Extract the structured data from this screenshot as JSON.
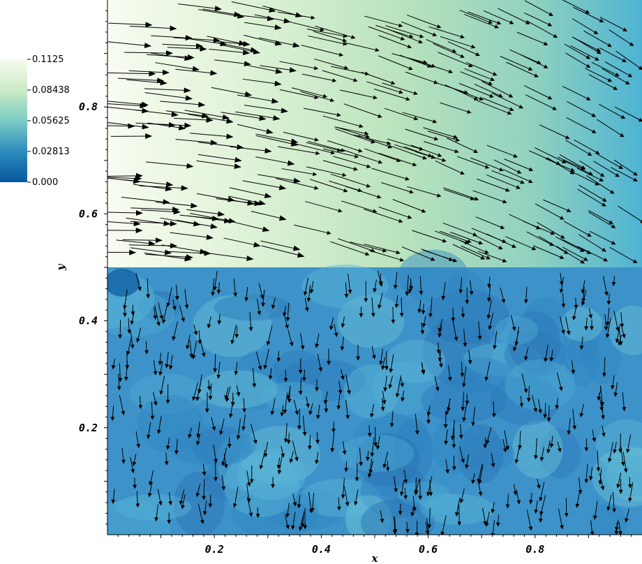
{
  "chart_data": {
    "type": "vector_field",
    "xlabel": "x",
    "ylabel": "y",
    "xlim": [
      0.0,
      1.0
    ],
    "ylim": [
      0.0,
      1.0
    ],
    "x_ticks": [
      "0.2",
      "0.4",
      "0.6",
      "0.8"
    ],
    "x_tick_values": [
      0.2,
      0.4,
      0.6,
      0.8
    ],
    "y_ticks": [
      "0.2",
      "0.4",
      "0.6",
      "0.8"
    ],
    "y_tick_values": [
      0.2,
      0.4,
      0.6,
      0.8
    ],
    "colorbar": {
      "min": 0.0,
      "max": 0.1125,
      "tick_labels": [
        "0.1125",
        "0.08438",
        "0.05625",
        "0.02813",
        "0.000"
      ],
      "tick_values": [
        0.1125,
        0.08438,
        0.05625,
        0.02813,
        0.0
      ],
      "colormap": [
        "#f7fcf0",
        "#ccebc5",
        "#7bccc4",
        "#2b8cbe",
        "#08589e"
      ]
    },
    "regions": [
      {
        "name": "upper",
        "y_range": [
          0.5,
          1.0
        ],
        "background": "gradient light green (x=0) to teal (x=1)",
        "flow": "rightward, tilting downward with increasing x"
      },
      {
        "name": "lower",
        "y_range": [
          0.0,
          0.5
        ],
        "background": "blue mottled",
        "flow": "downward"
      }
    ],
    "interface_y": 0.5
  }
}
